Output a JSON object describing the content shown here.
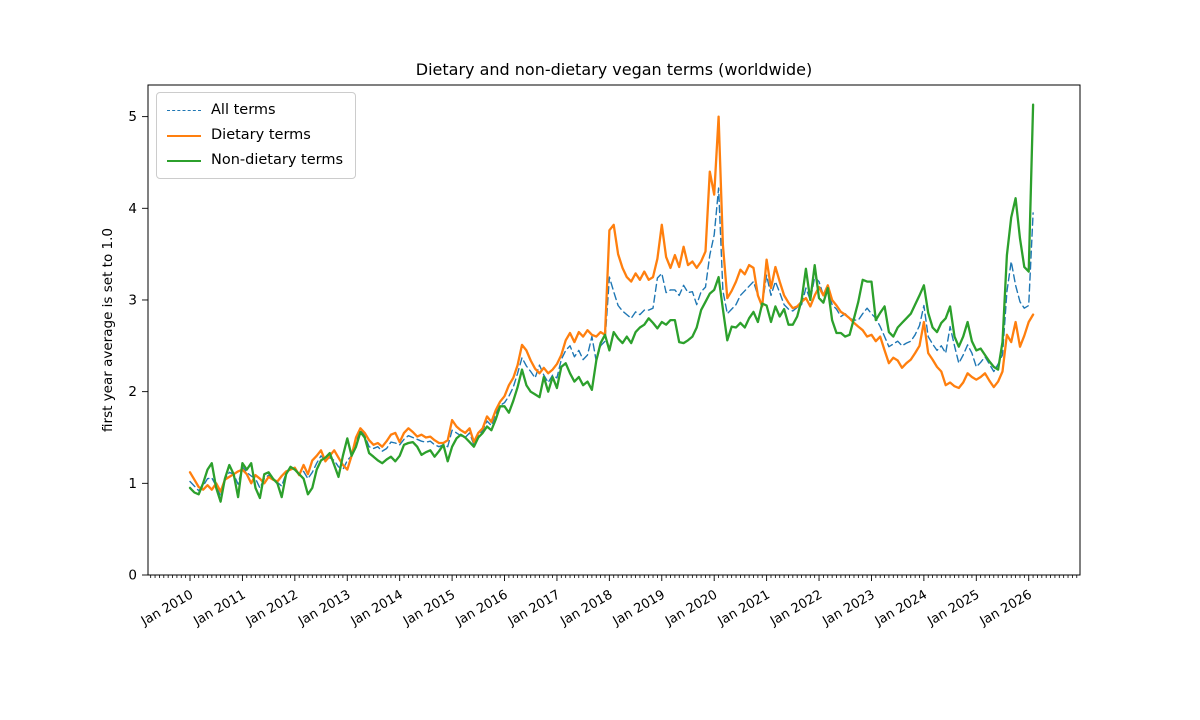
{
  "figure": {
    "title": "Dietary and non-dietary vegan terms (worldwide)"
  },
  "chart_data": {
    "type": "line",
    "title": "Dietary and non-dietary vegan terms (worldwide)",
    "xlabel": "",
    "ylabel": "first year average is set to 1.0",
    "grid": false,
    "legend_position": "upper-left",
    "x_unit": "month",
    "x_start": "Jan 2010",
    "x_end": "Feb 2026",
    "x_tick_labels": [
      "Jan 2010",
      "Jan 2011",
      "Jan 2012",
      "Jan 2013",
      "Jan 2014",
      "Jan 2015",
      "Jan 2016",
      "Jan 2017",
      "Jan 2018",
      "Jan 2019",
      "Jan 2020",
      "Jan 2021",
      "Jan 2022",
      "Jan 2023",
      "Jan 2024",
      "Jan 2025",
      "Jan 2026"
    ],
    "y_ticks": [
      0,
      1,
      2,
      3,
      4,
      5
    ],
    "ylim": [
      0,
      5.345
    ],
    "series": [
      {
        "name": "All terms",
        "color": "#1f77b4",
        "style": "dashed",
        "values": [
          1.02,
          0.97,
          0.92,
          0.97,
          1.05,
          1.06,
          0.97,
          0.86,
          1.04,
          1.12,
          1.1,
          0.99,
          1.18,
          1.12,
          1.08,
          1.05,
          0.95,
          1.05,
          1.09,
          1.05,
          1.01,
          0.97,
          1.11,
          1.16,
          1.16,
          1.1,
          1.13,
          1.05,
          1.12,
          1.22,
          1.3,
          1.25,
          1.28,
          1.25,
          1.18,
          1.15,
          1.25,
          1.3,
          1.45,
          1.58,
          1.52,
          1.4,
          1.38,
          1.4,
          1.35,
          1.38,
          1.45,
          1.44,
          1.42,
          1.48,
          1.52,
          1.5,
          1.48,
          1.46,
          1.45,
          1.46,
          1.42,
          1.4,
          1.42,
          1.4,
          1.58,
          1.55,
          1.52,
          1.5,
          1.55,
          1.42,
          1.52,
          1.58,
          1.68,
          1.63,
          1.76,
          1.85,
          1.88,
          1.95,
          2.05,
          2.2,
          2.37,
          2.28,
          2.22,
          2.15,
          2.29,
          2.18,
          2.1,
          2.18,
          2.15,
          2.35,
          2.45,
          2.5,
          2.38,
          2.45,
          2.35,
          2.4,
          2.6,
          2.33,
          2.5,
          2.55,
          3.25,
          3.09,
          2.94,
          2.88,
          2.84,
          2.8,
          2.87,
          2.84,
          2.89,
          2.89,
          2.91,
          3.24,
          3.29,
          3.08,
          3.11,
          3.11,
          3.05,
          3.16,
          3.08,
          3.09,
          2.95,
          3.09,
          3.14,
          3.49,
          3.71,
          4.22,
          3.1,
          2.85,
          2.9,
          2.95,
          3.05,
          3.1,
          3.15,
          3.2,
          3.05,
          2.95,
          3.27,
          3.05,
          3.2,
          3.08,
          2.95,
          2.9,
          2.88,
          2.92,
          2.95,
          3.13,
          3.0,
          3.25,
          3.2,
          3.05,
          3.1,
          2.95,
          2.9,
          2.82,
          2.85,
          2.8,
          2.78,
          2.78,
          2.85,
          2.91,
          2.85,
          2.8,
          2.71,
          2.6,
          2.49,
          2.52,
          2.55,
          2.5,
          2.53,
          2.55,
          2.62,
          2.72,
          2.94,
          2.6,
          2.52,
          2.45,
          2.5,
          2.42,
          2.71,
          2.5,
          2.31,
          2.4,
          2.51,
          2.42,
          2.27,
          2.32,
          2.38,
          2.3,
          2.22,
          2.3,
          2.4,
          3.09,
          3.42,
          3.16,
          2.98,
          2.91,
          2.94,
          3.95
        ]
      },
      {
        "name": "Dietary terms",
        "color": "#ff7f0e",
        "style": "solid",
        "values": [
          1.12,
          1.04,
          0.96,
          0.93,
          0.98,
          0.93,
          1.0,
          0.91,
          1.04,
          1.07,
          1.1,
          1.13,
          1.15,
          1.1,
          1.0,
          1.09,
          1.05,
          1.0,
          1.07,
          1.04,
          1.02,
          1.08,
          1.13,
          1.15,
          1.17,
          1.09,
          1.2,
          1.1,
          1.25,
          1.3,
          1.36,
          1.24,
          1.3,
          1.36,
          1.28,
          1.2,
          1.15,
          1.3,
          1.5,
          1.6,
          1.55,
          1.47,
          1.42,
          1.44,
          1.4,
          1.46,
          1.53,
          1.55,
          1.45,
          1.55,
          1.6,
          1.56,
          1.51,
          1.53,
          1.5,
          1.51,
          1.47,
          1.44,
          1.44,
          1.47,
          1.69,
          1.62,
          1.58,
          1.55,
          1.6,
          1.45,
          1.55,
          1.6,
          1.73,
          1.67,
          1.8,
          1.89,
          1.95,
          2.07,
          2.15,
          2.29,
          2.51,
          2.45,
          2.34,
          2.25,
          2.2,
          2.26,
          2.2,
          2.24,
          2.3,
          2.4,
          2.56,
          2.64,
          2.54,
          2.65,
          2.6,
          2.67,
          2.62,
          2.6,
          2.65,
          2.62,
          3.76,
          3.82,
          3.5,
          3.35,
          3.25,
          3.2,
          3.29,
          3.22,
          3.31,
          3.22,
          3.25,
          3.45,
          3.82,
          3.47,
          3.35,
          3.49,
          3.36,
          3.58,
          3.38,
          3.42,
          3.35,
          3.42,
          3.53,
          4.4,
          4.15,
          5.0,
          3.6,
          3.02,
          3.1,
          3.2,
          3.33,
          3.28,
          3.38,
          3.35,
          3.05,
          2.93,
          3.44,
          3.13,
          3.36,
          3.2,
          3.05,
          2.97,
          2.91,
          2.93,
          2.98,
          3.02,
          2.93,
          3.05,
          3.14,
          3.05,
          3.16,
          3.0,
          2.94,
          2.87,
          2.84,
          2.8,
          2.75,
          2.71,
          2.67,
          2.6,
          2.62,
          2.55,
          2.6,
          2.45,
          2.31,
          2.37,
          2.34,
          2.26,
          2.31,
          2.35,
          2.42,
          2.5,
          2.76,
          2.42,
          2.35,
          2.27,
          2.22,
          2.07,
          2.1,
          2.06,
          2.04,
          2.1,
          2.2,
          2.16,
          2.13,
          2.16,
          2.2,
          2.12,
          2.05,
          2.11,
          2.22,
          2.62,
          2.54,
          2.76,
          2.49,
          2.61,
          2.76,
          2.84
        ]
      },
      {
        "name": "Non-dietary terms",
        "color": "#2ca02c",
        "style": "solid",
        "values": [
          0.95,
          0.9,
          0.88,
          1.0,
          1.15,
          1.22,
          0.95,
          0.8,
          1.05,
          1.2,
          1.1,
          0.85,
          1.22,
          1.15,
          1.22,
          0.95,
          0.84,
          1.1,
          1.12,
          1.05,
          1.0,
          0.85,
          1.1,
          1.18,
          1.15,
          1.1,
          1.05,
          0.88,
          0.95,
          1.15,
          1.25,
          1.28,
          1.33,
          1.2,
          1.07,
          1.3,
          1.49,
          1.3,
          1.4,
          1.56,
          1.5,
          1.33,
          1.29,
          1.25,
          1.22,
          1.26,
          1.29,
          1.24,
          1.3,
          1.42,
          1.44,
          1.45,
          1.4,
          1.31,
          1.34,
          1.36,
          1.29,
          1.35,
          1.42,
          1.24,
          1.4,
          1.49,
          1.53,
          1.5,
          1.45,
          1.4,
          1.5,
          1.55,
          1.62,
          1.58,
          1.7,
          1.84,
          1.84,
          1.77,
          1.9,
          2.05,
          2.24,
          2.07,
          2.0,
          1.97,
          1.94,
          2.16,
          2.0,
          2.16,
          2.04,
          2.27,
          2.31,
          2.2,
          2.11,
          2.16,
          2.07,
          2.11,
          2.02,
          2.34,
          2.53,
          2.62,
          2.45,
          2.65,
          2.58,
          2.53,
          2.6,
          2.53,
          2.65,
          2.7,
          2.73,
          2.8,
          2.75,
          2.69,
          2.76,
          2.73,
          2.78,
          2.78,
          2.54,
          2.53,
          2.56,
          2.6,
          2.7,
          2.89,
          2.98,
          3.07,
          3.11,
          3.25,
          2.9,
          2.56,
          2.71,
          2.7,
          2.75,
          2.7,
          2.8,
          2.87,
          2.76,
          2.96,
          2.94,
          2.76,
          2.93,
          2.82,
          2.9,
          2.73,
          2.73,
          2.82,
          3.0,
          3.34,
          3.0,
          3.38,
          3.02,
          2.97,
          3.13,
          2.78,
          2.64,
          2.64,
          2.6,
          2.62,
          2.8,
          2.98,
          3.22,
          3.2,
          3.2,
          2.78,
          2.86,
          2.93,
          2.65,
          2.6,
          2.7,
          2.75,
          2.8,
          2.85,
          2.95,
          3.05,
          3.16,
          2.86,
          2.7,
          2.65,
          2.75,
          2.8,
          2.93,
          2.6,
          2.49,
          2.6,
          2.76,
          2.55,
          2.45,
          2.47,
          2.4,
          2.33,
          2.27,
          2.24,
          2.54,
          3.49,
          3.9,
          4.11,
          3.67,
          3.36,
          3.31,
          5.13
        ]
      }
    ]
  }
}
